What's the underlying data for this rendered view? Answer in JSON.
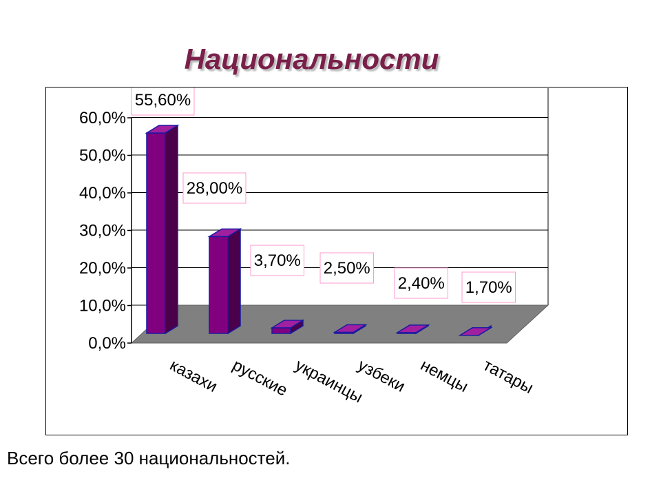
{
  "slide": {
    "title": "Национальности",
    "footnote": "Всего более 30 национальностей."
  },
  "colors": {
    "title": "#7a1f4a",
    "bar_front": "#800080",
    "bar_side": "#4a004a",
    "bar_top": "#a020a0",
    "bar_outline": "#1a1aa0",
    "floor": "#808080",
    "label_box": "#ff99cc"
  },
  "chart_data": {
    "type": "bar",
    "title": "",
    "xlabel": "",
    "ylabel": "",
    "categories": [
      "казахи",
      "русские",
      "украинцы",
      "узбеки",
      "немцы",
      "татары"
    ],
    "values": [
      55.6,
      28.0,
      3.7,
      2.5,
      2.4,
      1.7
    ],
    "data_labels": [
      "55,60%",
      "28,00%",
      "3,70%",
      "2,50%",
      "2,40%",
      "1,70%"
    ],
    "y_ticks": [
      "0,0%",
      "10,0%",
      "20,0%",
      "30,0%",
      "40,0%",
      "50,0%",
      "60,0%"
    ],
    "ylim": [
      0,
      60
    ],
    "grid": true,
    "three_d": true,
    "legend": "none"
  }
}
